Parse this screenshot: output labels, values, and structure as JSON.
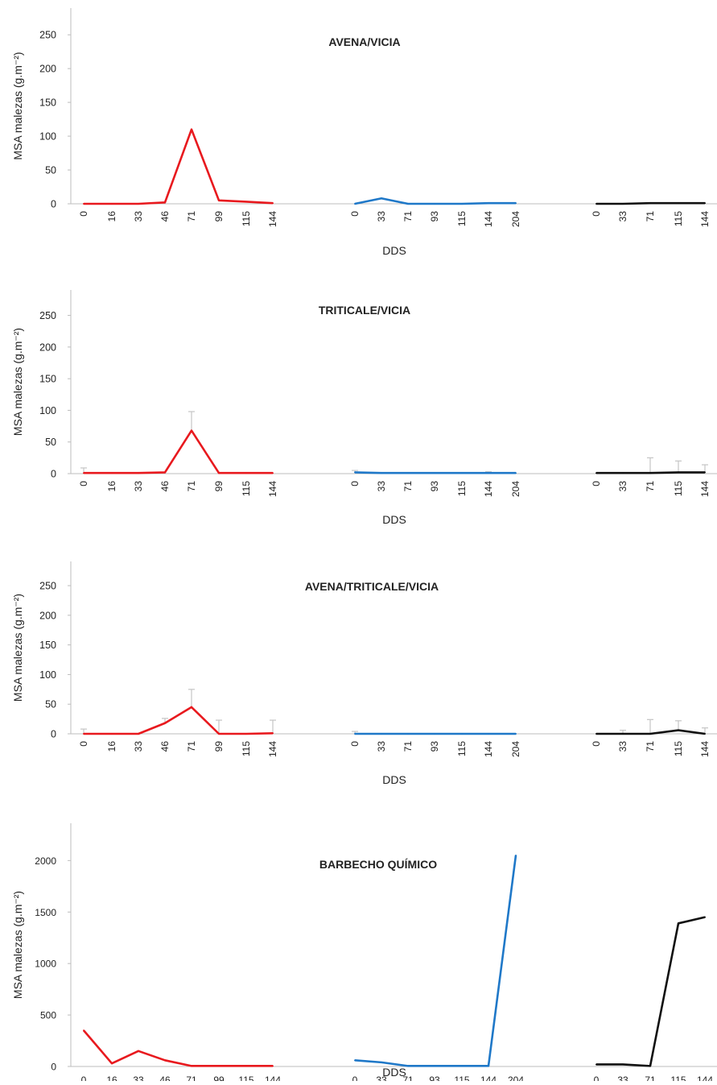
{
  "figure": {
    "ylabel": "MSA malezas (g.m⁻²)",
    "xlabel": "DDS"
  },
  "chart_data": [
    {
      "type": "line",
      "title": "AVENA/VICIA",
      "xlabel": "DDS",
      "ylabel": "MSA malezas (g.m⁻²)",
      "ylim": [
        0,
        280
      ],
      "yticks": [
        0,
        50,
        100,
        150,
        200,
        250
      ],
      "series": [
        {
          "color": "#e8191e",
          "x": [
            "0",
            "16",
            "33",
            "46",
            "71",
            "99",
            "115",
            "144"
          ],
          "values": [
            0,
            0,
            0,
            2,
            110,
            5,
            3,
            1
          ],
          "err": [
            0,
            0,
            0,
            0,
            0,
            0,
            0,
            0
          ]
        },
        {
          "color": "#1f78c8",
          "x": [
            "0",
            "33",
            "71",
            "93",
            "115",
            "144",
            "204"
          ],
          "values": [
            0,
            8,
            0,
            0,
            0,
            1,
            1
          ],
          "err": [
            0,
            0,
            0,
            0,
            0,
            0,
            0
          ]
        },
        {
          "color": "#111111",
          "x": [
            "0",
            "33",
            "71",
            "115",
            "144"
          ],
          "values": [
            0,
            0,
            1,
            1,
            1
          ],
          "err": [
            0,
            0,
            0,
            0,
            0
          ]
        }
      ]
    },
    {
      "type": "line",
      "title": "TRITICALE/VICIA",
      "xlabel": "DDS",
      "ylabel": "MSA malezas (g.m⁻²)",
      "ylim": [
        0,
        280
      ],
      "yticks": [
        0,
        50,
        100,
        150,
        200,
        250
      ],
      "series": [
        {
          "color": "#e8191e",
          "x": [
            "0",
            "16",
            "33",
            "46",
            "71",
            "99",
            "115",
            "144"
          ],
          "values": [
            1,
            1,
            1,
            2,
            68,
            1,
            1,
            1
          ],
          "err": [
            8,
            0,
            0,
            0,
            30,
            0,
            0,
            0
          ]
        },
        {
          "color": "#1f78c8",
          "x": [
            "0",
            "33",
            "71",
            "93",
            "115",
            "144",
            "204"
          ],
          "values": [
            2,
            1,
            1,
            1,
            1,
            1,
            1
          ],
          "err": [
            3,
            0,
            0,
            0,
            0,
            2,
            0
          ]
        },
        {
          "color": "#111111",
          "x": [
            "0",
            "33",
            "71",
            "115",
            "144"
          ],
          "values": [
            1,
            1,
            1,
            2,
            2
          ],
          "err": [
            0,
            0,
            24,
            18,
            12
          ]
        }
      ]
    },
    {
      "type": "line",
      "title": "AVENA/TRITICALE/VICIA",
      "xlabel": "DDS",
      "ylabel": "MSA malezas (g.m⁻²)",
      "ylim": [
        0,
        280
      ],
      "yticks": [
        0,
        50,
        100,
        150,
        200,
        250
      ],
      "series": [
        {
          "color": "#e8191e",
          "x": [
            "0",
            "16",
            "33",
            "46",
            "71",
            "99",
            "115",
            "144"
          ],
          "values": [
            0,
            0,
            0,
            18,
            45,
            0,
            0,
            1
          ],
          "err": [
            8,
            0,
            0,
            8,
            30,
            23,
            0,
            22
          ]
        },
        {
          "color": "#1f78c8",
          "x": [
            "0",
            "33",
            "71",
            "93",
            "115",
            "144",
            "204"
          ],
          "values": [
            0,
            0,
            0,
            0,
            0,
            0,
            0
          ],
          "err": [
            4,
            0,
            0,
            0,
            0,
            0,
            0
          ]
        },
        {
          "color": "#111111",
          "x": [
            "0",
            "33",
            "71",
            "115",
            "144"
          ],
          "values": [
            0,
            0,
            0,
            6,
            0
          ],
          "err": [
            0,
            6,
            24,
            16,
            10
          ]
        }
      ]
    },
    {
      "type": "line",
      "title": "BARBECHO QUÍMICO",
      "xlabel": "DDS",
      "ylabel": "MSA malezas (g.m⁻²)",
      "ylim": [
        0,
        2300
      ],
      "yticks": [
        0,
        500,
        1000,
        1500,
        2000
      ],
      "series": [
        {
          "color": "#e8191e",
          "x": [
            "0",
            "16",
            "33",
            "46",
            "71",
            "99",
            "115",
            "144"
          ],
          "values": [
            350,
            30,
            150,
            60,
            5,
            5,
            5,
            5
          ],
          "err": [
            0,
            0,
            0,
            0,
            0,
            0,
            0,
            0
          ]
        },
        {
          "color": "#1f78c8",
          "x": [
            "0",
            "33",
            "71",
            "93",
            "115",
            "144",
            "204"
          ],
          "values": [
            60,
            40,
            5,
            5,
            5,
            5,
            2050
          ],
          "err": [
            0,
            0,
            0,
            0,
            0,
            0,
            0
          ]
        },
        {
          "color": "#111111",
          "x": [
            "0",
            "33",
            "71",
            "115",
            "144"
          ],
          "values": [
            20,
            20,
            5,
            1390,
            1450
          ],
          "err": [
            0,
            0,
            0,
            0,
            0
          ]
        }
      ]
    }
  ]
}
